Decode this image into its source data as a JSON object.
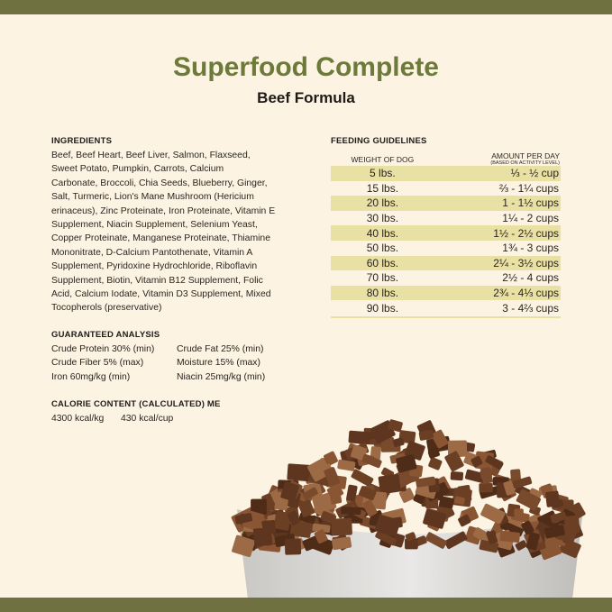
{
  "title": "Superfood Complete",
  "subtitle": "Beef Formula",
  "ingredients": {
    "heading": "INGREDIENTS",
    "lines": [
      "Beef, Beef Heart, Beef Liver, Salmon, Flaxseed,",
      "Sweet Potato, Pumpkin, Carrots, Calcium",
      "Carbonate, Broccoli, Chia Seeds, Blueberry, Ginger,",
      "Salt, Turmeric, Lion's Mane Mushroom (Hericium",
      "erinaceus), Zinc Proteinate, Iron Proteinate, Vitamin E",
      "Supplement, Niacin Supplement, Selenium Yeast,",
      "Copper Proteinate, Manganese Proteinate, Thiamine",
      "Mononitrate, D-Calcium Pantothenate, Vitamin A",
      "Supplement, Pyridoxine Hydrochloride, Riboflavin",
      "Supplement, Biotin, Vitamin B12 Supplement, Folic",
      "Acid, Calcium Iodate, Vitamin D3 Supplement, Mixed",
      "Tocopherols (preservative)"
    ]
  },
  "guaranteed_analysis": {
    "heading": "GUARANTEED ANALYSIS",
    "left": [
      "Crude Protein 30% (min)",
      "Crude Fiber 5% (max)",
      "Iron 60mg/kg (min)"
    ],
    "right": [
      "Crude Fat 25% (min)",
      "Moisture 15% (max)",
      "Niacin 25mg/kg (min)"
    ]
  },
  "calories": {
    "heading": "CALORIE CONTENT (CALCULATED) ME",
    "per_kg": "4300 kcal/kg",
    "per_cup": "430 kcal/cup"
  },
  "feeding": {
    "heading": "FEEDING GUIDELINES",
    "col_weight": "WEIGHT OF DOG",
    "col_amount": "AMOUNT PER DAY",
    "col_amount_note": "(BASED ON ACTIVITY LEVEL)",
    "rows": [
      {
        "weight": "5 lbs.",
        "amount": "⅓ - ½ cup"
      },
      {
        "weight": "15 lbs.",
        "amount": "⅔ - 1¼ cups"
      },
      {
        "weight": "20 lbs.",
        "amount": "1 - 1½ cups"
      },
      {
        "weight": "30 lbs.",
        "amount": "1¼ - 2 cups"
      },
      {
        "weight": "40 lbs.",
        "amount": "1½ - 2½ cups"
      },
      {
        "weight": "50 lbs.",
        "amount": "1¾ - 3 cups"
      },
      {
        "weight": "60 lbs.",
        "amount": "2¼ - 3½ cups"
      },
      {
        "weight": "70 lbs.",
        "amount": "2½ - 4 cups"
      },
      {
        "weight": "80 lbs.",
        "amount": "2¾ - 4⅓ cups"
      },
      {
        "weight": "90 lbs.",
        "amount": "3 - 4⅔ cups"
      }
    ]
  },
  "colors": {
    "band": "#6f7141",
    "title": "#6d7a3a",
    "background": "#fcf3e3",
    "row_highlight": "#e9e0a3"
  }
}
